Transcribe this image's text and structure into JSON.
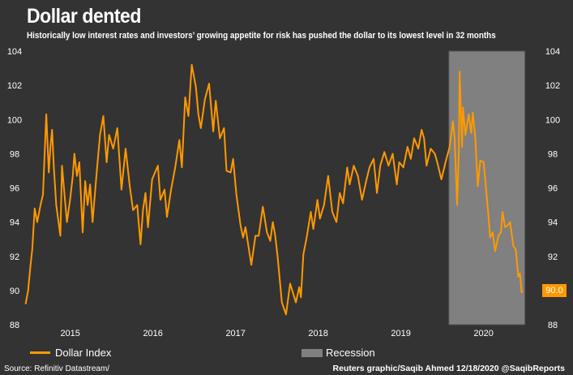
{
  "header": {
    "title": "Dollar dented",
    "subtitle": "Historically low interest rates and investors’ growing appetite for risk has pushed the dollar to its lowest level in 32 months"
  },
  "chart_data": {
    "type": "line",
    "title": "Dollar dented",
    "xlabel": "",
    "ylabel": "",
    "ylim": [
      88,
      104
    ],
    "xlim": [
      2014.65,
      2021.17
    ],
    "grid": false,
    "y_ticks": [
      88,
      90,
      92,
      94,
      96,
      98,
      100,
      102,
      104
    ],
    "y_tick_labels": [
      "88",
      "90",
      "92",
      "94",
      "96",
      "98",
      "100",
      "102",
      "104"
    ],
    "x_ticks": [
      2015,
      2016,
      2017,
      2018,
      2019,
      2020
    ],
    "x_tick_labels": [
      "2015",
      "2016",
      "2017",
      "2018",
      "2019",
      "2020"
    ],
    "axes": "left-and-right",
    "colors": {
      "background": "#333333",
      "line": "#FF9900",
      "recession": "#808080",
      "text": "#FFFFFF"
    },
    "legend_placement": "bottom",
    "recession": {
      "name": "Recession",
      "start": 2020.08,
      "end": 2021.0
    },
    "last_value_label": "90.0",
    "series": [
      {
        "name": "Dollar Index",
        "x": [
          2014.96,
          2014.99,
          2015.02,
          2015.04,
          2015.07,
          2015.1,
          2015.14,
          2015.17,
          2015.21,
          2015.24,
          2015.26,
          2015.28,
          2015.3,
          2015.33,
          2015.38,
          2015.4,
          2015.43,
          2015.46,
          2015.5,
          2015.53,
          2015.55,
          2015.58,
          2015.61,
          2015.65,
          2015.68,
          2015.71,
          2015.74,
          2015.77,
          2015.82,
          2015.86,
          2015.9,
          2015.94,
          2015.97,
          2016.02,
          2016.07,
          2016.12,
          2016.17,
          2016.22,
          2016.26,
          2016.31,
          2016.35,
          2016.38,
          2016.41,
          2016.44,
          2016.49,
          2016.56,
          2016.59,
          2016.64,
          2016.67,
          2016.72,
          2016.77,
          2016.82,
          2016.85,
          2016.89,
          2016.93,
          2016.97,
          2017.02,
          2017.05,
          2017.08,
          2017.13,
          2017.18,
          2017.23,
          2017.26,
          2017.31,
          2017.36,
          2017.39,
          2017.44,
          2017.47,
          2017.51,
          2017.56,
          2017.59,
          2017.62,
          2017.69,
          2017.74,
          2017.78,
          2017.83,
          2017.88,
          2017.92,
          2017.95,
          2017.98,
          2018.01,
          2018.06,
          2018.11,
          2018.16,
          2018.23,
          2018.27,
          2018.29,
          2018.32,
          2018.36,
          2018.41,
          2018.44,
          2018.49,
          2018.52,
          2018.57,
          2018.62,
          2018.67,
          2018.72,
          2018.76,
          2018.8,
          2018.85,
          2018.88,
          2018.93,
          2018.98,
          2019.03,
          2019.08,
          2019.12,
          2019.17,
          2019.21,
          2019.25,
          2019.3,
          2019.35,
          2019.4,
          2019.45,
          2019.48,
          2019.53,
          2019.58,
          2019.62,
          2019.66,
          2019.71,
          2019.75,
          2019.78,
          2019.81,
          2019.86,
          2019.91,
          2019.94,
          2019.99,
          2020.04,
          2020.09,
          2020.13,
          2020.15,
          2020.18,
          2020.2,
          2020.21,
          2020.24,
          2020.25,
          2020.28,
          2020.32,
          2020.35,
          2020.37,
          2020.4,
          2020.43,
          2020.46,
          2020.5,
          2020.52,
          2020.56,
          2020.58,
          2020.61,
          2020.64,
          2020.68,
          2020.71,
          2020.73,
          2020.76,
          2020.79,
          2020.82,
          2020.86,
          2020.89,
          2020.92,
          2020.94,
          2020.96,
          2020.97
        ],
        "y": [
          89.2,
          90.0,
          91.5,
          92.4,
          94.8,
          94.0,
          95.0,
          95.6,
          100.3,
          96.9,
          98.4,
          99.4,
          97.3,
          95.0,
          93.2,
          97.3,
          95.6,
          94.0,
          95.4,
          96.7,
          98.0,
          96.7,
          97.5,
          93.4,
          96.4,
          95.0,
          96.2,
          94.0,
          96.9,
          99.1,
          100.2,
          97.5,
          99.1,
          98.3,
          99.5,
          95.9,
          98.3,
          96.1,
          94.7,
          95.0,
          92.7,
          94.7,
          95.7,
          93.7,
          96.5,
          97.3,
          95.3,
          95.9,
          94.3,
          95.9,
          97.2,
          98.8,
          97.2,
          101.3,
          100.2,
          103.2,
          101.9,
          100.3,
          99.5,
          101.2,
          102.1,
          99.3,
          101.1,
          98.9,
          99.5,
          97.0,
          96.9,
          97.7,
          95.6,
          93.8,
          93.1,
          93.7,
          91.5,
          93.2,
          93.2,
          94.9,
          93.4,
          92.9,
          94.0,
          93.2,
          91.9,
          89.3,
          88.6,
          90.4,
          89.3,
          90.2,
          89.6,
          92.1,
          93.1,
          94.6,
          93.6,
          95.3,
          94.2,
          95.0,
          96.7,
          94.6,
          94.0,
          95.7,
          95.1,
          97.2,
          96.2,
          97.3,
          96.7,
          95.3,
          96.4,
          97.2,
          97.7,
          95.7,
          97.3,
          98.1,
          97.3,
          98.0,
          96.2,
          97.5,
          97.2,
          98.4,
          97.7,
          98.9,
          98.3,
          99.4,
          98.9,
          97.3,
          98.3,
          98.0,
          97.5,
          96.5,
          97.5,
          98.4,
          99.9,
          98.9,
          95.0,
          98.1,
          102.8,
          98.4,
          100.7,
          99.1,
          100.3,
          99.2,
          100.4,
          98.9,
          96.1,
          97.6,
          97.5,
          96.5,
          94.3,
          93.1,
          93.4,
          92.3,
          93.2,
          93.4,
          94.6,
          93.7,
          93.8,
          94.0,
          92.6,
          92.4,
          90.8,
          91.0,
          89.9,
          90.0
        ]
      }
    ]
  },
  "legend": {
    "line_label": "Dollar Index",
    "recession_label": "Recession"
  },
  "footer": {
    "source": "Source: Refinitiv Datastream/",
    "credit": "Reuters graphic/Saqib Ahmed 12/18/2020 @SaqibReports"
  }
}
